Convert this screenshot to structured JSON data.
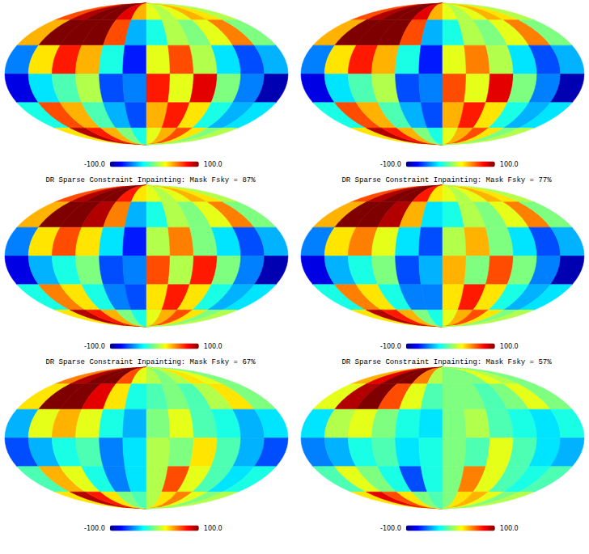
{
  "chart_data": [
    {
      "type": "heatmap",
      "lat_edges": [
        90,
        60,
        30,
        0,
        -30,
        -60,
        -90
      ],
      "lon_edges": [
        -180,
        -150,
        -120,
        -90,
        -60,
        -30,
        0,
        30,
        60,
        90,
        120,
        150,
        180
      ],
      "cells": [
        [
          60,
          90,
          100,
          100,
          80,
          40,
          20,
          10,
          20,
          40,
          30,
          10
        ],
        [
          40,
          100,
          100,
          100,
          60,
          -40,
          -20,
          10,
          0,
          20,
          50,
          0
        ],
        [
          -50,
          30,
          70,
          40,
          -20,
          -70,
          20,
          60,
          10,
          -30,
          -60,
          -40
        ],
        [
          -80,
          -30,
          -10,
          10,
          -60,
          -50,
          70,
          20,
          80,
          0,
          -50,
          -90
        ],
        [
          -20,
          60,
          40,
          -10,
          -40,
          -60,
          40,
          70,
          30,
          -20,
          -40,
          -30
        ],
        [
          30,
          90,
          70,
          40,
          0,
          -20,
          20,
          40,
          60,
          30,
          0,
          10
        ]
      ],
      "colorbar": {
        "range": [
          -100,
          100
        ],
        "ticks": [
          {
            "value": -100,
            "label": "-100.0"
          },
          {
            "value": 100,
            "label": "100.0"
          }
        ]
      }
    },
    {
      "type": "heatmap",
      "lat_edges": [
        90,
        60,
        30,
        0,
        -30,
        -60,
        -90
      ],
      "lon_edges": [
        -180,
        -150,
        -120,
        -90,
        -60,
        -30,
        0,
        30,
        60,
        90,
        120,
        150,
        180
      ],
      "cells": [
        [
          60,
          90,
          100,
          100,
          80,
          40,
          20,
          10,
          20,
          40,
          30,
          10
        ],
        [
          40,
          100,
          100,
          100,
          60,
          -40,
          -20,
          10,
          0,
          20,
          50,
          0
        ],
        [
          -50,
          30,
          70,
          40,
          -20,
          -70,
          20,
          50,
          10,
          -30,
          -60,
          -40
        ],
        [
          -80,
          -30,
          -10,
          10,
          -60,
          -50,
          60,
          20,
          80,
          0,
          -50,
          -90
        ],
        [
          -20,
          60,
          40,
          -10,
          -40,
          -60,
          40,
          70,
          30,
          -20,
          -40,
          -30
        ],
        [
          30,
          90,
          70,
          40,
          0,
          -20,
          20,
          40,
          60,
          30,
          0,
          10
        ]
      ],
      "colorbar": {
        "range": [
          -100,
          100
        ],
        "ticks": [
          {
            "value": -100,
            "label": "-100.0"
          },
          {
            "value": 100,
            "label": "100.0"
          }
        ]
      }
    },
    {
      "type": "heatmap",
      "title": "DR Sparse Constraint Inpainting: Mask Fsky = 87%",
      "lat_edges": [
        90,
        60,
        30,
        0,
        -30,
        -60,
        -90
      ],
      "lon_edges": [
        -180,
        -150,
        -120,
        -90,
        -60,
        -30,
        0,
        30,
        60,
        90,
        120,
        150,
        180
      ],
      "cells": [
        [
          60,
          90,
          100,
          100,
          70,
          30,
          20,
          10,
          20,
          40,
          30,
          10
        ],
        [
          40,
          100,
          100,
          90,
          50,
          -40,
          -20,
          10,
          0,
          20,
          50,
          0
        ],
        [
          -50,
          30,
          60,
          30,
          -30,
          -70,
          10,
          50,
          0,
          -30,
          -60,
          -40
        ],
        [
          -80,
          -40,
          -20,
          0,
          -60,
          -50,
          60,
          10,
          70,
          0,
          -50,
          -90
        ],
        [
          -20,
          50,
          30,
          -20,
          -50,
          -60,
          30,
          70,
          30,
          -20,
          -40,
          -30
        ],
        [
          30,
          90,
          70,
          40,
          0,
          -20,
          20,
          40,
          60,
          30,
          0,
          10
        ]
      ],
      "colorbar": {
        "range": [
          -100,
          100
        ],
        "ticks": [
          {
            "value": -100,
            "label": "-100.0"
          },
          {
            "value": 100,
            "label": "100.0"
          }
        ]
      }
    },
    {
      "type": "heatmap",
      "title": "DR Sparse Constraint Inpainting: Mask Fsky = 77%",
      "lat_edges": [
        90,
        60,
        30,
        0,
        -30,
        -60,
        -90
      ],
      "lon_edges": [
        -180,
        -150,
        -120,
        -90,
        -60,
        -30,
        0,
        30,
        60,
        90,
        120,
        150,
        180
      ],
      "cells": [
        [
          60,
          90,
          100,
          100,
          70,
          30,
          20,
          10,
          20,
          40,
          30,
          10
        ],
        [
          40,
          100,
          100,
          90,
          40,
          -30,
          -20,
          10,
          0,
          20,
          50,
          0
        ],
        [
          -50,
          30,
          50,
          20,
          -30,
          -60,
          10,
          40,
          0,
          -30,
          -60,
          -40
        ],
        [
          -80,
          -40,
          -20,
          0,
          -60,
          -40,
          40,
          0,
          60,
          0,
          -50,
          -90
        ],
        [
          -20,
          50,
          30,
          -20,
          -50,
          -50,
          30,
          70,
          30,
          -20,
          -40,
          -30
        ],
        [
          30,
          90,
          70,
          40,
          0,
          -20,
          20,
          40,
          60,
          30,
          0,
          10
        ]
      ],
      "colorbar": {
        "range": [
          -100,
          100
        ],
        "ticks": [
          {
            "value": -100,
            "label": "-100.0"
          },
          {
            "value": 100,
            "label": "100.0"
          }
        ]
      }
    },
    {
      "type": "heatmap",
      "title": "DR Sparse Constraint Inpainting: Mask Fsky = 67%",
      "lat_edges": [
        90,
        60,
        30,
        0,
        -30,
        -60,
        -90
      ],
      "lon_edges": [
        -180,
        -150,
        -120,
        -90,
        -60,
        -30,
        0,
        30,
        60,
        90,
        120,
        150,
        180
      ],
      "cells": [
        [
          50,
          90,
          100,
          100,
          60,
          20,
          10,
          0,
          10,
          30,
          20,
          0
        ],
        [
          30,
          100,
          100,
          80,
          30,
          -20,
          -10,
          0,
          -10,
          10,
          30,
          0
        ],
        [
          -40,
          20,
          40,
          20,
          -20,
          -40,
          0,
          20,
          -10,
          -20,
          -40,
          -30
        ],
        [
          -60,
          -40,
          -20,
          -10,
          -50,
          -30,
          10,
          0,
          30,
          -10,
          -40,
          -60
        ],
        [
          -10,
          40,
          20,
          -20,
          -50,
          -30,
          10,
          60,
          20,
          -10,
          -30,
          -20
        ],
        [
          30,
          90,
          70,
          30,
          0,
          -10,
          10,
          30,
          50,
          20,
          0,
          10
        ]
      ],
      "colorbar": {
        "range": [
          -100,
          100
        ],
        "ticks": [
          {
            "value": -100,
            "label": "-100.0"
          },
          {
            "value": 100,
            "label": "100.0"
          }
        ]
      }
    },
    {
      "type": "heatmap",
      "title": "DR Sparse Constraint Inpainting: Mask Fsky = 57%",
      "lat_edges": [
        90,
        60,
        30,
        0,
        -30,
        -60,
        -90
      ],
      "lon_edges": [
        -180,
        -150,
        -120,
        -90,
        -60,
        -30,
        0,
        30,
        60,
        90,
        120,
        150,
        180
      ],
      "cells": [
        [
          40,
          80,
          100,
          100,
          50,
          10,
          0,
          0,
          0,
          20,
          10,
          0
        ],
        [
          20,
          90,
          100,
          60,
          20,
          -10,
          0,
          0,
          -10,
          0,
          20,
          0
        ],
        [
          -30,
          10,
          20,
          0,
          -20,
          -30,
          0,
          10,
          -10,
          -20,
          -30,
          -20
        ],
        [
          -50,
          -40,
          -20,
          -10,
          -30,
          -20,
          0,
          -10,
          20,
          -10,
          -30,
          -40
        ],
        [
          -10,
          20,
          0,
          -20,
          -60,
          -20,
          0,
          50,
          20,
          -10,
          -20,
          -10
        ],
        [
          30,
          80,
          60,
          30,
          0,
          -10,
          0,
          30,
          40,
          20,
          0,
          10
        ]
      ],
      "colorbar": {
        "range": [
          -100,
          100
        ],
        "ticks": [
          {
            "value": -100,
            "label": "-100.0"
          },
          {
            "value": 100,
            "label": "100.0"
          }
        ]
      }
    }
  ]
}
